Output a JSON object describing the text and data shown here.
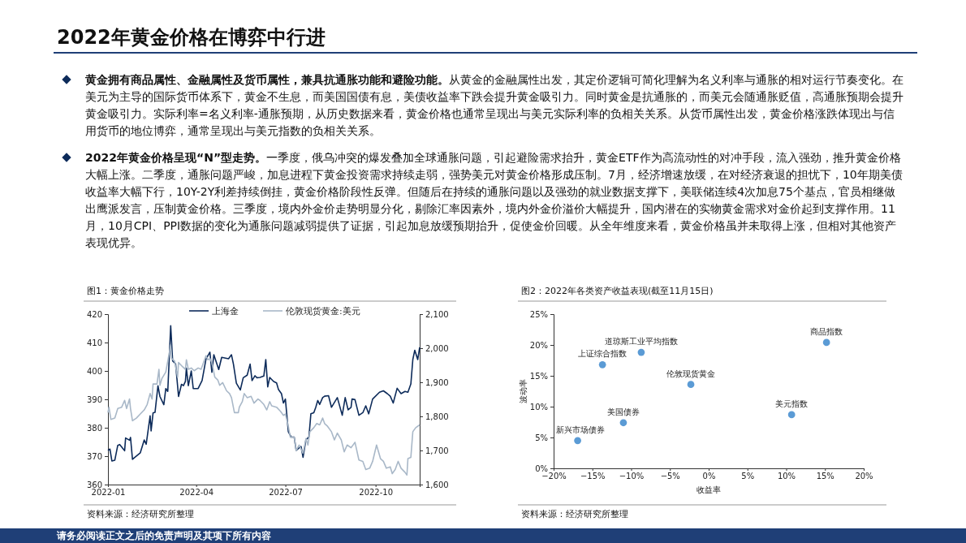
{
  "chart_data": [
    {
      "type": "other",
      "title": "2022年黄金价格在博弈中行进",
      "annotations": [
        "黄金拥有商品属性、金融属性及货币属性，兼具抗通胀功能和避险功能。",
        "从黄金的金融属性出发，其定价逻辑可简化理解为名义利率与通胀的相对运行节奏变化。在美元为主导的国际货币体系下，黄金不生息，而美国国债有息，美债收益率下跌会提升黄金吸引力。同时黄金是抗通胀的，而美元会随通胀贬值，高通胀预期会提升黄金吸引力。实际利率=名义利率-通胀预期，从历史数据来看，黄金价格也通常呈现出与美元实际利率的负相关关系。从货币属性出发，黄金价格涨跌体现出与信用货币的地位博弈，通常呈现出与美元指数的负相关关系。",
        "2022年黄金价格呈现“N”型走势。",
        "一季度，俄乌冲突的爆发叠加全球通胀问题，引起避险需求抬升，黄金ETF作为高流动性的对冲手段，流入强劲，推升黄金价格大幅上涨。二季度，通胀问题严峻，加息进程下黄金投资需求持续走弱，强势美元对黄金价格形成压制。7月，经济增速放缓，在对经济衰退的担忧下，10年期美债收益率大幅下行，10Y-2Y利差持续倒挂，黄金价格阶段性反弹。但随后在持续的通胀问题以及强劲的就业数据支撑下，美联储连续4次加息75个基点，官员相继做出鹰派发言，压制黄金价格。三季度，境内外金价走势明显分化，剔除汇率因素外，境内外金价溢价大幅提升，国内潜在的实物黄金需求对金价起到支撑作用。11月，10月CPI、PPI数据的变化为通胀问题减弱提供了证据，引起加息放缓预期抬升，促使金价回暖。从全年维度来看，黄金价格虽并未取得上涨，但相对其他资产表现优异。",
        "请务必阅读正文之后的免责声明及其项下所有内容"
      ]
    },
    {
      "type": "line",
      "title": "图1：黄金价格走势",
      "annotations": [
        "资料来源：经济研究所整理"
      ],
      "legend": "top",
      "line_style": "solid",
      "grid": false,
      "xlim": [
        "2022-01-01",
        "2022-11-15"
      ],
      "xticks": [
        {
          "value": "2022-01-01",
          "label": "2022-01"
        },
        {
          "value": "2022-04-01",
          "label": "2022-04"
        },
        {
          "value": "2022-07-01",
          "label": "2022-07"
        },
        {
          "value": "2022-10-01",
          "label": "2022-10"
        }
      ],
      "ylim": [
        360,
        420
      ],
      "yticks": [
        360,
        370,
        380,
        390,
        400,
        410,
        420
      ],
      "y2lim": [
        1600,
        2100
      ],
      "y2ticks": [
        {
          "value": 1600,
          "label": "1,600"
        },
        {
          "value": 1700,
          "label": "1,700"
        },
        {
          "value": 1800,
          "label": "1,800"
        },
        {
          "value": 1900,
          "label": "1,900"
        },
        {
          "value": 2000,
          "label": "2,000"
        },
        {
          "value": 2100,
          "label": "2,100"
        }
      ],
      "series": [
        {
          "name": "上海金",
          "color": "#0d2b5a",
          "x": [
            "2022-01-01",
            "2022-01-03",
            "2022-01-05",
            "2022-01-08",
            "2022-01-11",
            "2022-01-13",
            "2022-01-18",
            "2022-01-19",
            "2022-01-23",
            "2022-01-24",
            "2022-01-26",
            "2022-02-03",
            "2022-02-07",
            "2022-02-09",
            "2022-02-13",
            "2022-02-14",
            "2022-02-16",
            "2022-02-18",
            "2022-02-21",
            "2022-02-23",
            "2022-02-27",
            "2022-03-01",
            "2022-03-03",
            "2022-03-06",
            "2022-03-08",
            "2022-03-11",
            "2022-03-14",
            "2022-03-17",
            "2022-03-19",
            "2022-03-21",
            "2022-03-22",
            "2022-03-24",
            "2022-03-27",
            "2022-03-29",
            "2022-04-03",
            "2022-04-07",
            "2022-04-11",
            "2022-04-15",
            "2022-04-17",
            "2022-04-19",
            "2022-04-24",
            "2022-04-27",
            "2022-05-04",
            "2022-05-07",
            "2022-05-09",
            "2022-05-12",
            "2022-05-16",
            "2022-05-19",
            "2022-05-23",
            "2022-05-26",
            "2022-05-28",
            "2022-05-31",
            "2022-06-02",
            "2022-06-05",
            "2022-06-09",
            "2022-06-11",
            "2022-06-13",
            "2022-06-15",
            "2022-06-19",
            "2022-06-22",
            "2022-06-24",
            "2022-06-27",
            "2022-06-29",
            "2022-07-01",
            "2022-07-04",
            "2022-07-07",
            "2022-07-10",
            "2022-07-12",
            "2022-07-15",
            "2022-07-17",
            "2022-07-19",
            "2022-07-22",
            "2022-07-25",
            "2022-07-27",
            "2022-07-30",
            "2022-08-01",
            "2022-08-03",
            "2022-08-05",
            "2022-08-08",
            "2022-08-10",
            "2022-08-14",
            "2022-08-17",
            "2022-08-23",
            "2022-08-28",
            "2022-08-31",
            "2022-09-03",
            "2022-09-06",
            "2022-09-07",
            "2022-09-10",
            "2022-09-14",
            "2022-09-18",
            "2022-09-21",
            "2022-09-24",
            "2022-09-28",
            "2022-10-05",
            "2022-10-09",
            "2022-10-13",
            "2022-10-16",
            "2022-10-19",
            "2022-10-23",
            "2022-10-27",
            "2022-10-31",
            "2022-11-03",
            "2022-11-06",
            "2022-11-08",
            "2022-11-10",
            "2022-11-13",
            "2022-11-15"
          ],
          "values": [
            372.0,
            372.5,
            368.3,
            368.6,
            373.8,
            374.1,
            371.9,
            376.4,
            375.6,
            376.6,
            368.9,
            371.2,
            375.7,
            374.2,
            384.2,
            378.9,
            385.2,
            385.4,
            394.8,
            391.0,
            388.1,
            393.8,
            392.8,
            415.9,
            403.5,
            402.5,
            391.0,
            395.3,
            394.8,
            396.3,
            401.0,
            394.8,
            400.0,
            393.8,
            393.8,
            396.6,
            404.2,
            406.6,
            399.5,
            405.7,
            400.5,
            404.8,
            404.3,
            405.7,
            402.4,
            395.7,
            393.3,
            397.6,
            398.5,
            402.4,
            396.6,
            398.3,
            397.6,
            397.7,
            398.2,
            404.0,
            394.4,
            397.7,
            396.3,
            395.8,
            393.4,
            392.0,
            388.7,
            390.1,
            378.6,
            376.7,
            376.7,
            372.0,
            372.9,
            373.4,
            369.6,
            375.8,
            376.7,
            384.9,
            385.3,
            387.2,
            389.6,
            388.2,
            390.6,
            391.1,
            391.3,
            387.2,
            390.6,
            384.4,
            390.6,
            386.3,
            387.2,
            390.1,
            389.9,
            384.4,
            385.3,
            387.7,
            384.9,
            390.1,
            392.5,
            393.0,
            392.0,
            391.1,
            388.7,
            393.9,
            392.0,
            392.8,
            392.5,
            395.4,
            404.0,
            407.3,
            404.0,
            408.3
          ]
        },
        {
          "name": "伦敦现货黄金:美元",
          "color": "#a9b8c8",
          "axis": "y2",
          "x": [
            "2022-01-01",
            "2022-01-02",
            "2022-01-04",
            "2022-01-08",
            "2022-01-11",
            "2022-01-15",
            "2022-01-18",
            "2022-01-20",
            "2022-01-23",
            "2022-01-24",
            "2022-01-26",
            "2022-01-30",
            "2022-02-03",
            "2022-02-07",
            "2022-02-10",
            "2022-02-13",
            "2022-02-15",
            "2022-02-16",
            "2022-02-20",
            "2022-02-22",
            "2022-02-23",
            "2022-02-25",
            "2022-03-01",
            "2022-03-06",
            "2022-03-07",
            "2022-03-10",
            "2022-03-13",
            "2022-03-14",
            "2022-03-18",
            "2022-03-21",
            "2022-03-22",
            "2022-03-24",
            "2022-03-27",
            "2022-03-30",
            "2022-04-03",
            "2022-04-06",
            "2022-04-11",
            "2022-04-13",
            "2022-04-15",
            "2022-04-17",
            "2022-04-20",
            "2022-04-23",
            "2022-04-25",
            "2022-04-28",
            "2022-05-02",
            "2022-05-05",
            "2022-05-07",
            "2022-05-10",
            "2022-05-14",
            "2022-05-15",
            "2022-05-18",
            "2022-05-20",
            "2022-05-23",
            "2022-05-27",
            "2022-05-30",
            "2022-06-03",
            "2022-06-05",
            "2022-06-09",
            "2022-06-12",
            "2022-06-15",
            "2022-06-17",
            "2022-06-22",
            "2022-06-26",
            "2022-06-29",
            "2022-07-01",
            "2022-07-04",
            "2022-07-06",
            "2022-07-10",
            "2022-07-12",
            "2022-07-15",
            "2022-07-17",
            "2022-07-19",
            "2022-07-22",
            "2022-07-24",
            "2022-07-26",
            "2022-07-30",
            "2022-08-02",
            "2022-08-05",
            "2022-08-08",
            "2022-08-10",
            "2022-08-13",
            "2022-08-17",
            "2022-08-20",
            "2022-08-23",
            "2022-08-27",
            "2022-08-30",
            "2022-09-02",
            "2022-09-06",
            "2022-09-10",
            "2022-09-14",
            "2022-09-18",
            "2022-09-21",
            "2022-09-25",
            "2022-09-28",
            "2022-10-02",
            "2022-10-06",
            "2022-10-09",
            "2022-10-12",
            "2022-10-16",
            "2022-10-18",
            "2022-10-21",
            "2022-10-24",
            "2022-10-27",
            "2022-10-31",
            "2022-11-02",
            "2022-11-03",
            "2022-11-06",
            "2022-11-08",
            "2022-11-11",
            "2022-11-15"
          ],
          "values": [
            1811,
            1827,
            1791,
            1795,
            1823,
            1827,
            1847,
            1823,
            1851,
            1823,
            1787,
            1795,
            1807,
            1819,
            1835,
            1867,
            1851,
            1895,
            1895,
            1938,
            1891,
            1911,
            1930,
            2010,
            1970,
            1962,
            1915,
            1958,
            1946,
            1938,
            1966,
            1938,
            1942,
            1934,
            1942,
            1938,
            1978,
            1966,
            1970,
            1958,
            1915,
            1907,
            1891,
            1899,
            1875,
            1867,
            1855,
            1811,
            1811,
            1827,
            1843,
            1867,
            1855,
            1859,
            1839,
            1851,
            1847,
            1835,
            1819,
            1843,
            1831,
            1827,
            1815,
            1803,
            1807,
            1771,
            1739,
            1739,
            1700,
            1716,
            1704,
            1692,
            1735,
            1716,
            1755,
            1767,
            1779,
            1775,
            1795,
            1779,
            1771,
            1755,
            1731,
            1751,
            1731,
            1696,
            1716,
            1708,
            1724,
            1672,
            1668,
            1644,
            1648,
            1668,
            1716,
            1676,
            1668,
            1648,
            1652,
            1632,
            1644,
            1668,
            1648,
            1636,
            1628,
            1676,
            1680,
            1755,
            1767,
            1775
          ]
        }
      ]
    },
    {
      "type": "scatter",
      "title": "图2：2022年各类资产收益表现(截至11月15日)",
      "xlabel": "收益率",
      "ylabel": "波动率",
      "annotations": [
        "资料来源：经济研究所整理"
      ],
      "marker": "circle",
      "grid": false,
      "xlim": [
        -20,
        20
      ],
      "xticks": [
        {
          "value": -20,
          "label": "−20%"
        },
        {
          "value": -15,
          "label": "−15%"
        },
        {
          "value": -10,
          "label": "−10%"
        },
        {
          "value": -5,
          "label": "−5%"
        },
        {
          "value": 0,
          "label": "0%"
        },
        {
          "value": 5,
          "label": "5%"
        },
        {
          "value": 10,
          "label": "10%"
        },
        {
          "value": 15,
          "label": "15%"
        },
        {
          "value": 20,
          "label": "20%"
        }
      ],
      "ylim": [
        0,
        25
      ],
      "yticks": [
        {
          "value": 0,
          "label": "0%"
        },
        {
          "value": 5,
          "label": "5%"
        },
        {
          "value": 10,
          "label": "10%"
        },
        {
          "value": 15,
          "label": "15%"
        },
        {
          "value": 20,
          "label": "20%"
        },
        {
          "value": 25,
          "label": "25%"
        }
      ],
      "series": [
        {
          "name": "新兴市场债券",
          "color": "#5b9bd5",
          "x": [
            -16.9
          ],
          "values": [
            4.5
          ]
        },
        {
          "name": "美国债券",
          "color": "#5b9bd5",
          "x": [
            -11.0
          ],
          "values": [
            7.4
          ]
        },
        {
          "name": "上证综合指数",
          "color": "#5b9bd5",
          "x": [
            -13.7
          ],
          "values": [
            16.8
          ]
        },
        {
          "name": "道琼斯工业平均指数",
          "color": "#5b9bd5",
          "x": [
            -8.7
          ],
          "values": [
            18.8
          ]
        },
        {
          "name": "伦敦现货黄金",
          "color": "#5b9bd5",
          "x": [
            -2.3
          ],
          "values": [
            13.6
          ]
        },
        {
          "name": "美元指数",
          "color": "#5b9bd5",
          "x": [
            10.7
          ],
          "values": [
            8.7
          ]
        },
        {
          "name": "商品指数",
          "color": "#5b9bd5",
          "x": [
            15.2
          ],
          "values": [
            20.4
          ]
        }
      ]
    }
  ]
}
